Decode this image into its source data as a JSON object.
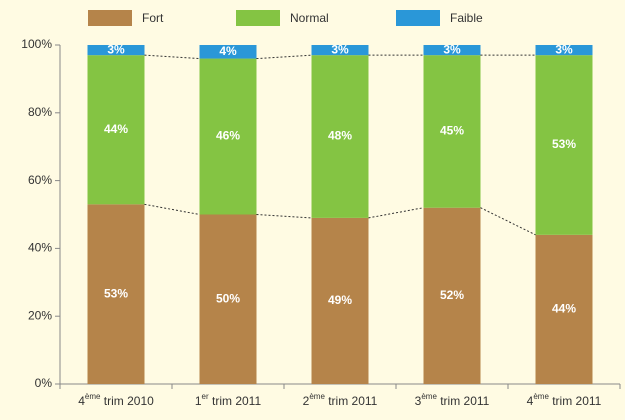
{
  "chart_data": {
    "type": "stacked_bar",
    "categories": [
      "4ème trim 2010",
      "1er trim 2011",
      "2ème trim 2011",
      "3ème trim 2011",
      "4ème trim 2011"
    ],
    "series": [
      {
        "name": "Fort",
        "color": "#b5844a",
        "values": [
          53,
          50,
          49,
          52,
          44
        ],
        "value_labels": [
          "53%",
          "50%",
          "49%",
          "52%",
          "44%"
        ]
      },
      {
        "name": "Normal",
        "color": "#84c443",
        "values": [
          44,
          46,
          48,
          45,
          53
        ],
        "value_labels": [
          "44%",
          "46%",
          "48%",
          "45%",
          "53%"
        ]
      },
      {
        "name": "Faible",
        "color": "#2a97d8",
        "values": [
          3,
          4,
          3,
          3,
          3
        ],
        "value_labels": [
          "3%",
          "4%",
          "3%",
          "3%",
          "3%"
        ]
      }
    ],
    "ylim": [
      0,
      100
    ],
    "yticks": [
      {
        "value": 0,
        "label": "0%"
      },
      {
        "value": 20,
        "label": "20%"
      },
      {
        "value": 40,
        "label": "40%"
      },
      {
        "value": 60,
        "label": "60%"
      },
      {
        "value": 80,
        "label": "80%"
      },
      {
        "value": 100,
        "label": "100%"
      }
    ],
    "legend": "top"
  }
}
